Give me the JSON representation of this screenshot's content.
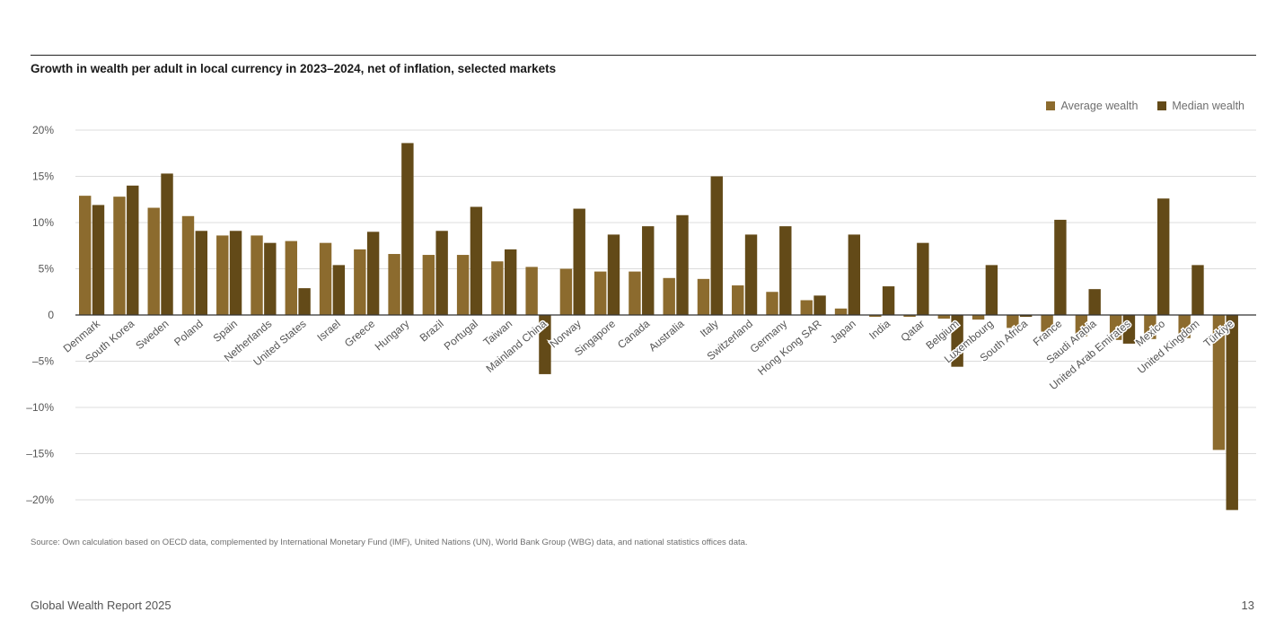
{
  "title": "Growth in wealth per adult in local currency in 2023–2024, net of inflation, selected markets",
  "legend": {
    "average_label": "Average wealth",
    "median_label": "Median wealth"
  },
  "colors": {
    "average": "#8c6b2e",
    "median": "#634a18",
    "grid": "#dcdcdc",
    "zero_axis": "#333333"
  },
  "source": "Source: Own calculation based on OECD data, complemented by International Monetary Fund (IMF), United Nations (UN), World Bank Group (WBG) data, and national statistics offices data.",
  "footer": {
    "report_title": "Global Wealth Report 2025",
    "page_number": "13"
  },
  "chart_data": {
    "type": "bar",
    "title": "Growth in wealth per adult in local currency in 2023–2024, net of inflation, selected markets",
    "xlabel": "",
    "ylabel": "",
    "ylim": [
      -20,
      20
    ],
    "yticks": [
      20,
      15,
      10,
      5,
      0,
      -5,
      -10,
      -15,
      -20
    ],
    "ytick_labels": [
      "20%",
      "15%",
      "10%",
      "5%",
      "0",
      "–5%",
      "–10%",
      "–15%",
      "–20%"
    ],
    "grid": true,
    "legend_position": "top-right",
    "categories": [
      "Denmark",
      "South Korea",
      "Sweden",
      "Poland",
      "Spain",
      "Netherlands",
      "United States",
      "Israel",
      "Greece",
      "Hungary",
      "Brazil",
      "Portugal",
      "Taiwan",
      "Mainland China",
      "Norway",
      "Singapore",
      "Canada",
      "Australia",
      "Italy",
      "Switzerland",
      "Germany",
      "Hong Kong SAR",
      "Japan",
      "India",
      "Qatar",
      "Belgium",
      "Luxembourg",
      "South Africa",
      "France",
      "Saudi Arabia",
      "United Arab Emirates",
      "Mexico",
      "United Kingdom",
      "Türkiye"
    ],
    "series": [
      {
        "name": "Average wealth",
        "values": [
          12.9,
          12.8,
          11.6,
          10.7,
          8.6,
          8.6,
          8.0,
          7.8,
          7.1,
          6.6,
          6.5,
          6.5,
          5.8,
          5.2,
          5.0,
          4.7,
          4.7,
          4.0,
          3.9,
          3.2,
          2.5,
          1.6,
          0.7,
          -0.2,
          -0.2,
          -0.4,
          -0.5,
          -1.4,
          -1.8,
          -2.3,
          -2.7,
          -2.6,
          -2.5,
          -14.6
        ]
      },
      {
        "name": "Median wealth",
        "values": [
          11.9,
          14.0,
          15.3,
          9.1,
          9.1,
          7.8,
          2.9,
          5.4,
          9.0,
          18.6,
          9.1,
          11.7,
          7.1,
          -6.4,
          11.5,
          8.7,
          9.6,
          10.8,
          15.0,
          8.7,
          9.6,
          2.1,
          8.7,
          3.1,
          7.8,
          -5.6,
          5.4,
          -0.2,
          10.3,
          2.8,
          -3.1,
          12.6,
          5.4,
          -21.1
        ]
      }
    ]
  }
}
